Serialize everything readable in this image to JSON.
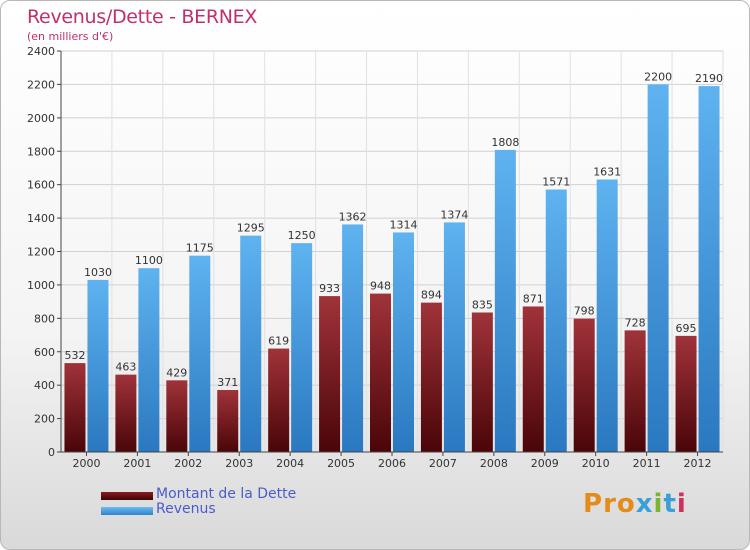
{
  "title": "Revenus/Dette - BERNEX",
  "subtitle": "(en milliers d'€)",
  "legend": [
    {
      "label": "Montant de la Dette",
      "color": "#6b0f14"
    },
    {
      "label": "Revenus",
      "color": "#4aa3e6"
    }
  ],
  "logo": {
    "text": "Proxiti",
    "letters": [
      "P",
      "r",
      "o",
      "x",
      "i",
      "t",
      "i"
    ]
  },
  "chart_data": {
    "type": "bar",
    "categories": [
      "2000",
      "2001",
      "2002",
      "2003",
      "2004",
      "2005",
      "2006",
      "2007",
      "2008",
      "2009",
      "2010",
      "2011",
      "2012"
    ],
    "series": [
      {
        "name": "Montant de la Dette",
        "color": "#7a1a1f",
        "values": [
          532,
          463,
          429,
          371,
          619,
          933,
          948,
          894,
          835,
          871,
          798,
          728,
          695
        ]
      },
      {
        "name": "Revenus",
        "color": "#4aa3e6",
        "values": [
          1030,
          1100,
          1175,
          1295,
          1250,
          1362,
          1314,
          1374,
          1808,
          1571,
          1631,
          2200,
          2190
        ]
      }
    ],
    "ylim": [
      0,
      2400
    ],
    "yticks": [
      0,
      200,
      400,
      600,
      800,
      1000,
      1200,
      1400,
      1600,
      1800,
      2000,
      2200,
      2400
    ],
    "grid": true,
    "legend_position": "bottom-left"
  }
}
